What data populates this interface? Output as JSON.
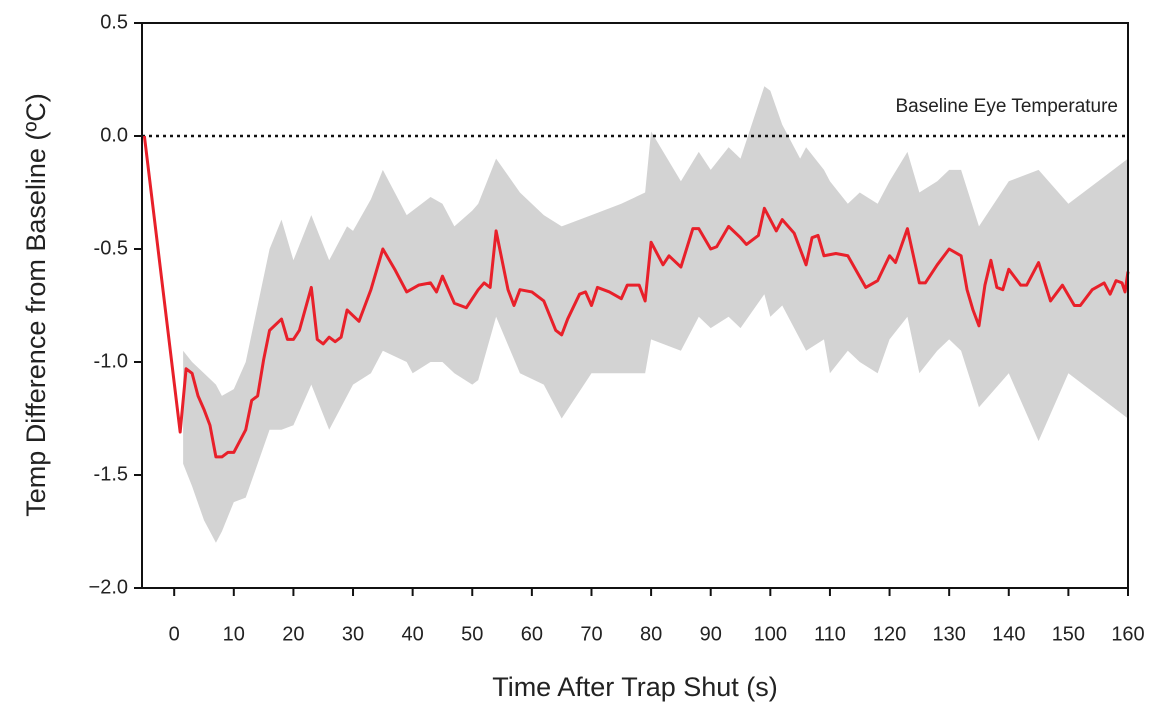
{
  "chart_data": {
    "type": "line",
    "xlabel": "Time After Trap Shut (s)",
    "ylabel": "Temp Difference from Baseline (ºC)",
    "xlim": [
      -5.4,
      160
    ],
    "ylim": [
      -2.0,
      0.5
    ],
    "xticks": [
      0,
      10,
      20,
      30,
      40,
      50,
      60,
      70,
      80,
      90,
      100,
      110,
      120,
      130,
      140,
      150,
      160
    ],
    "yticks": [
      0.5,
      {
        "value": 0,
        "label": "0.0"
      },
      -0.5,
      {
        "value": -1,
        "label": "-1.0"
      },
      -1.5,
      {
        "value": -2,
        "label": "−2.0"
      }
    ],
    "baseline": {
      "value": 0,
      "label": "Baseline Eye Temperature"
    },
    "mean": {
      "color": "#e8202a",
      "x": [
        -5,
        1,
        2,
        3,
        4,
        5,
        6,
        7,
        8,
        9,
        10,
        12,
        13,
        14,
        15,
        16,
        18,
        19,
        20,
        21,
        23,
        24,
        25,
        26,
        27,
        28,
        29,
        31,
        32,
        33,
        35,
        37,
        39,
        41,
        43,
        44,
        45,
        47,
        49,
        51,
        52,
        53,
        54,
        56,
        57,
        58,
        60,
        62,
        64,
        65,
        66,
        68,
        69,
        70,
        71,
        73,
        75,
        76,
        78,
        79,
        80,
        82,
        83,
        85,
        87,
        88,
        90,
        91,
        93,
        95,
        96,
        98,
        99,
        101,
        102,
        104,
        106,
        107,
        108,
        109,
        111,
        113,
        116,
        118,
        120,
        121,
        123,
        125,
        126,
        128,
        130,
        132,
        133,
        134,
        135,
        136,
        137,
        138,
        139,
        140,
        142,
        143,
        145,
        147,
        149,
        151,
        152,
        154,
        156,
        157,
        158,
        159,
        159.5,
        160
      ],
      "values": [
        0,
        -1.31,
        -1.03,
        -1.05,
        -1.15,
        -1.21,
        -1.28,
        -1.42,
        -1.42,
        -1.4,
        -1.4,
        -1.3,
        -1.17,
        -1.15,
        -0.99,
        -0.86,
        -0.81,
        -0.9,
        -0.9,
        -0.86,
        -0.67,
        -0.9,
        -0.92,
        -0.89,
        -0.91,
        -0.89,
        -0.77,
        -0.82,
        -0.75,
        -0.68,
        -0.5,
        -0.59,
        -0.69,
        -0.66,
        -0.65,
        -0.69,
        -0.62,
        -0.74,
        -0.76,
        -0.68,
        -0.65,
        -0.67,
        -0.42,
        -0.68,
        -0.75,
        -0.68,
        -0.69,
        -0.73,
        -0.86,
        -0.88,
        -0.81,
        -0.7,
        -0.69,
        -0.75,
        -0.67,
        -0.69,
        -0.72,
        -0.66,
        -0.66,
        -0.73,
        -0.47,
        -0.57,
        -0.53,
        -0.58,
        -0.41,
        -0.41,
        -0.5,
        -0.49,
        -0.4,
        -0.45,
        -0.48,
        -0.44,
        -0.32,
        -0.42,
        -0.37,
        -0.43,
        -0.57,
        -0.45,
        -0.44,
        -0.53,
        -0.52,
        -0.53,
        -0.67,
        -0.64,
        -0.53,
        -0.56,
        -0.41,
        -0.65,
        -0.65,
        -0.57,
        -0.5,
        -0.53,
        -0.68,
        -0.77,
        -0.84,
        -0.66,
        -0.55,
        -0.67,
        -0.68,
        -0.59,
        -0.66,
        -0.66,
        -0.56,
        -0.73,
        -0.66,
        -0.75,
        -0.75,
        -0.68,
        -0.65,
        -0.7,
        -0.64,
        -0.65,
        -0.69,
        -0.6
      ]
    },
    "band": {
      "color": "#d3d3d3",
      "x": [
        1.5,
        3,
        5,
        7,
        8,
        10,
        12,
        14,
        16,
        18,
        20,
        23,
        26,
        29,
        30,
        33,
        35,
        39,
        40,
        43,
        45,
        47,
        50,
        51,
        54,
        58,
        62,
        65,
        70,
        75,
        79,
        80,
        85,
        88,
        90,
        93,
        95,
        99,
        100,
        102,
        105,
        106,
        109,
        110,
        113,
        115,
        118,
        120,
        123,
        125,
        128,
        130,
        132,
        135,
        140,
        145,
        150,
        155,
        160
      ],
      "upper": [
        -0.95,
        -1.0,
        -1.05,
        -1.1,
        -1.15,
        -1.12,
        -1.0,
        -0.75,
        -0.5,
        -0.37,
        -0.55,
        -0.35,
        -0.55,
        -0.4,
        -0.42,
        -0.28,
        -0.15,
        -0.35,
        -0.33,
        -0.27,
        -0.3,
        -0.4,
        -0.33,
        -0.3,
        -0.1,
        -0.25,
        -0.35,
        -0.4,
        -0.35,
        -0.3,
        -0.25,
        0.02,
        -0.2,
        -0.07,
        -0.15,
        -0.05,
        -0.1,
        0.22,
        0.2,
        0.05,
        -0.1,
        -0.05,
        -0.15,
        -0.2,
        -0.3,
        -0.25,
        -0.3,
        -0.2,
        -0.07,
        -0.25,
        -0.2,
        -0.15,
        -0.15,
        -0.4,
        -0.2,
        -0.15,
        -0.3,
        -0.2,
        -0.1
      ],
      "lower": [
        -1.45,
        -1.55,
        -1.7,
        -1.8,
        -1.75,
        -1.62,
        -1.6,
        -1.45,
        -1.3,
        -1.3,
        -1.28,
        -1.1,
        -1.3,
        -1.15,
        -1.1,
        -1.05,
        -0.95,
        -1.0,
        -1.05,
        -1.0,
        -1.0,
        -1.05,
        -1.1,
        -1.08,
        -0.8,
        -1.05,
        -1.1,
        -1.25,
        -1.05,
        -1.05,
        -1.05,
        -0.9,
        -0.95,
        -0.8,
        -0.85,
        -0.8,
        -0.85,
        -0.7,
        -0.8,
        -0.75,
        -0.9,
        -0.95,
        -0.9,
        -1.05,
        -0.95,
        -1.0,
        -1.05,
        -0.9,
        -0.8,
        -1.05,
        -0.95,
        -0.9,
        -0.95,
        -1.2,
        -1.05,
        -1.35,
        -1.05,
        -1.15,
        -1.25
      ]
    }
  }
}
